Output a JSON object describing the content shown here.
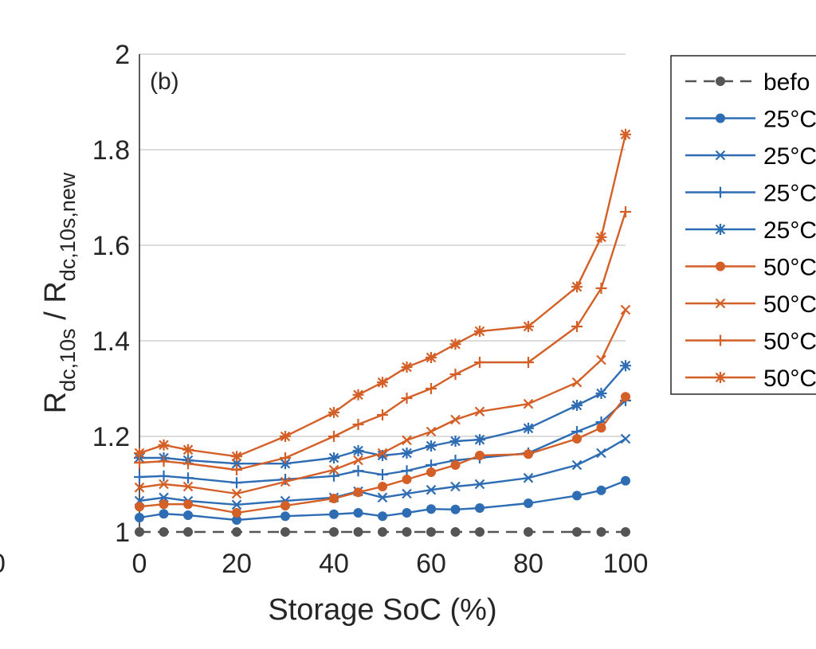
{
  "chart_data": {
    "type": "line",
    "panel_label": "(b)",
    "left_edge_fragment": "0",
    "xlabel": "Storage SoC (%)",
    "ylabel": {
      "part1_main": "R",
      "part1_sub": "dc,10s",
      "separator": " / ",
      "part2_main": "R",
      "part2_sub": "dc,10s,new"
    },
    "xlim": [
      0,
      100
    ],
    "ylim": [
      1,
      2
    ],
    "x_ticks": [
      0,
      20,
      40,
      60,
      80,
      100
    ],
    "x_tick_labels": [
      "0",
      "20",
      "40",
      "60",
      "80",
      "100"
    ],
    "y_ticks": [
      1,
      1.2,
      1.4,
      1.6,
      1.8,
      2
    ],
    "y_tick_labels": [
      "1",
      "1.2",
      "1.4",
      "1.6",
      "1.8",
      "2"
    ],
    "grid": "horizontal",
    "legend_position": "outside-right",
    "series": [
      {
        "name": "befo",
        "color": "#555555",
        "marker": "dot",
        "dashed": true,
        "x": [
          0,
          5,
          10,
          20,
          30,
          40,
          45,
          50,
          55,
          60,
          65,
          70,
          80,
          90,
          95,
          100
        ],
        "y": [
          1,
          1,
          1,
          1,
          1,
          1,
          1,
          1,
          1,
          1,
          1,
          1,
          1,
          1,
          1,
          1
        ]
      },
      {
        "name": "25°C",
        "color": "#2e6db4",
        "marker": "dot",
        "dashed": false,
        "x": [
          0,
          5,
          10,
          20,
          30,
          40,
          45,
          50,
          55,
          60,
          65,
          70,
          80,
          90,
          95,
          100
        ],
        "y": [
          1.03,
          1.038,
          1.035,
          1.025,
          1.033,
          1.037,
          1.04,
          1.033,
          1.04,
          1.048,
          1.047,
          1.05,
          1.06,
          1.076,
          1.087,
          1.107
        ]
      },
      {
        "name": "25°C",
        "color": "#2e6db4",
        "marker": "x",
        "dashed": false,
        "x": [
          0,
          5,
          10,
          20,
          30,
          40,
          45,
          50,
          55,
          60,
          65,
          70,
          80,
          90,
          95,
          100
        ],
        "y": [
          1.065,
          1.072,
          1.065,
          1.057,
          1.065,
          1.072,
          1.085,
          1.072,
          1.08,
          1.088,
          1.095,
          1.1,
          1.113,
          1.14,
          1.165,
          1.195
        ]
      },
      {
        "name": "25°C",
        "color": "#2e6db4",
        "marker": "plus",
        "dashed": false,
        "x": [
          0,
          5,
          10,
          20,
          30,
          40,
          45,
          50,
          55,
          60,
          65,
          70,
          80,
          90,
          95,
          100
        ],
        "y": [
          1.115,
          1.117,
          1.113,
          1.103,
          1.11,
          1.117,
          1.128,
          1.12,
          1.128,
          1.14,
          1.15,
          1.155,
          1.165,
          1.21,
          1.23,
          1.275
        ]
      },
      {
        "name": "25°C",
        "color": "#2e6db4",
        "marker": "star",
        "dashed": false,
        "x": [
          0,
          5,
          10,
          20,
          30,
          40,
          45,
          50,
          55,
          60,
          65,
          70,
          80,
          90,
          95,
          100
        ],
        "y": [
          1.155,
          1.155,
          1.15,
          1.143,
          1.143,
          1.155,
          1.17,
          1.16,
          1.165,
          1.18,
          1.19,
          1.193,
          1.217,
          1.265,
          1.29,
          1.348
        ]
      },
      {
        "name": "50°C",
        "color": "#d45f27",
        "marker": "dot",
        "dashed": false,
        "x": [
          0,
          5,
          10,
          20,
          30,
          40,
          45,
          50,
          55,
          60,
          65,
          70,
          80,
          90,
          95,
          100
        ],
        "y": [
          1.053,
          1.058,
          1.058,
          1.04,
          1.055,
          1.07,
          1.083,
          1.095,
          1.11,
          1.125,
          1.14,
          1.16,
          1.163,
          1.195,
          1.218,
          1.283
        ]
      },
      {
        "name": "50°C",
        "color": "#d45f27",
        "marker": "x",
        "dashed": false,
        "x": [
          0,
          5,
          10,
          20,
          30,
          40,
          45,
          50,
          55,
          60,
          65,
          70,
          80,
          90,
          95,
          100
        ],
        "y": [
          1.093,
          1.1,
          1.095,
          1.08,
          1.105,
          1.13,
          1.15,
          1.165,
          1.192,
          1.21,
          1.235,
          1.252,
          1.268,
          1.313,
          1.36,
          1.465
        ]
      },
      {
        "name": "50°C",
        "color": "#d45f27",
        "marker": "plus",
        "dashed": false,
        "x": [
          0,
          5,
          10,
          20,
          30,
          40,
          45,
          50,
          55,
          60,
          65,
          70,
          80,
          90,
          95,
          100
        ],
        "y": [
          1.145,
          1.148,
          1.143,
          1.13,
          1.155,
          1.2,
          1.225,
          1.245,
          1.28,
          1.3,
          1.33,
          1.355,
          1.355,
          1.43,
          1.51,
          1.67
        ]
      },
      {
        "name": "50°C",
        "color": "#d45f27",
        "marker": "star",
        "dashed": false,
        "x": [
          0,
          5,
          10,
          20,
          30,
          40,
          45,
          50,
          55,
          60,
          65,
          70,
          80,
          90,
          95,
          100
        ],
        "y": [
          1.165,
          1.182,
          1.172,
          1.158,
          1.2,
          1.25,
          1.287,
          1.313,
          1.345,
          1.365,
          1.393,
          1.42,
          1.43,
          1.513,
          1.617,
          1.832
        ]
      }
    ]
  }
}
